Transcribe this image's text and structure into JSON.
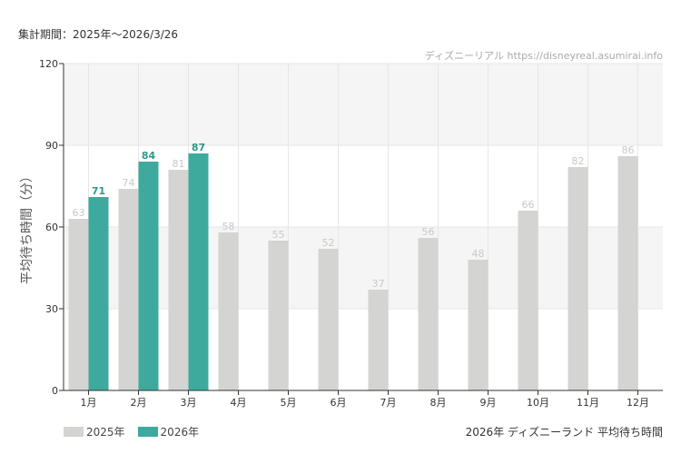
{
  "header": {
    "period": "集計期間：2025年～2026/3/26",
    "credit": "ディズニーリアル https://disneyreal.asumirai.info"
  },
  "caption": "2026年 ディズニーランド 平均待ち時間",
  "colors": {
    "2025": "#d4d4d2",
    "2026": "#3eaa9e",
    "label2026": "#2a9a8c",
    "label2025": "#c8c8c8",
    "band": "#f5f5f5"
  },
  "chart_data": {
    "type": "bar",
    "ylabel": "平均待ち時間（分）",
    "ylim": [
      0,
      120
    ],
    "yticks": [
      0,
      30,
      60,
      90,
      120
    ],
    "categories": [
      "1月",
      "2月",
      "3月",
      "4月",
      "5月",
      "6月",
      "7月",
      "8月",
      "9月",
      "10月",
      "11月",
      "12月"
    ],
    "series": [
      {
        "name": "2025年",
        "values": [
          63,
          74,
          81,
          58,
          55,
          52,
          37,
          56,
          48,
          66,
          82,
          86
        ]
      },
      {
        "name": "2026年",
        "values": [
          71,
          84,
          87,
          null,
          null,
          null,
          null,
          null,
          null,
          null,
          null,
          null
        ]
      }
    ],
    "legend": "bottom-left",
    "grid": true
  }
}
